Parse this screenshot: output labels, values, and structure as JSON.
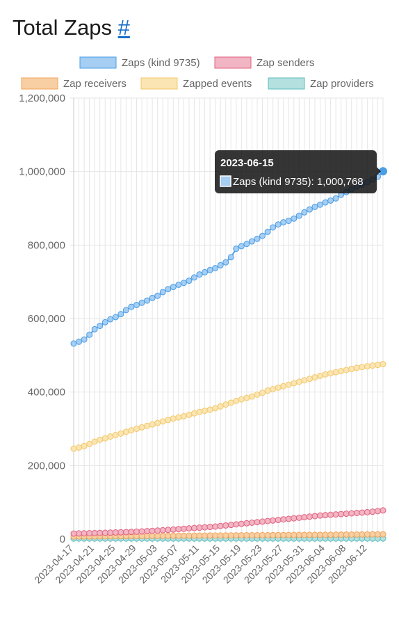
{
  "page": {
    "title": "Total Zaps",
    "anchor": "#"
  },
  "chart_data": {
    "type": "line",
    "title": "",
    "xlabel": "",
    "ylabel": "",
    "ylim": [
      0,
      1200000
    ],
    "y_ticks": [
      "0",
      "200,000",
      "400,000",
      "600,000",
      "800,000",
      "1,000,000",
      "1,200,000"
    ],
    "x_tick_labels": [
      "2023-04-17",
      "2023-04-21",
      "2023-04-25",
      "2023-04-29",
      "2023-05-03",
      "2023-05-07",
      "2023-05-11",
      "2023-05-15",
      "2023-05-19",
      "2023-05-23",
      "2023-05-27",
      "2023-05-31",
      "2023-06-04",
      "2023-06-08",
      "2023-06-12"
    ],
    "x_start": "2023-04-17",
    "x_end": "2023-06-15",
    "grid": true,
    "legend_position": "top",
    "series": [
      {
        "name": "Zaps (kind 9735)",
        "color": "#4a9ee6",
        "fill": "#a6cdf2",
        "values": [
          532000,
          537000,
          543000,
          556000,
          571000,
          580000,
          590000,
          598000,
          604000,
          612000,
          623000,
          632000,
          637000,
          643000,
          649000,
          656000,
          662000,
          672000,
          680000,
          686000,
          692000,
          697000,
          703000,
          712000,
          720000,
          726000,
          732000,
          737000,
          745000,
          753000,
          767000,
          790000,
          797000,
          803000,
          810000,
          817000,
          825000,
          836000,
          848000,
          856000,
          862000,
          866000,
          872000,
          880000,
          889000,
          897000,
          904000,
          910000,
          916000,
          921000,
          927000,
          937000,
          944000,
          952000,
          959000,
          965000,
          971000,
          978000,
          986000,
          1000768
        ]
      },
      {
        "name": "Zap senders",
        "color": "#e0607e",
        "fill": "#f2b5c3",
        "values": [
          15000,
          15300,
          15600,
          15900,
          16200,
          16600,
          17000,
          17400,
          17900,
          18400,
          18900,
          19500,
          20100,
          20800,
          21500,
          22300,
          23100,
          24000,
          25000,
          26000,
          27000,
          28000,
          29000,
          30000,
          31000,
          32000,
          33000,
          34000,
          35500,
          37000,
          38500,
          40000,
          41500,
          43000,
          44500,
          46000,
          47500,
          49000,
          50500,
          52000,
          53500,
          55000,
          56500,
          58000,
          59500,
          61000,
          62500,
          64000,
          65000,
          66000,
          67000,
          68000,
          69000,
          70000,
          71000,
          72000,
          73000,
          74500,
          76000,
          78000
        ]
      },
      {
        "name": "Zap receivers",
        "color": "#f0a35a",
        "fill": "#f7cfa3",
        "values": [
          7000,
          7100,
          7200,
          7300,
          7400,
          7500,
          7600,
          7700,
          7800,
          7900,
          8000,
          8100,
          8200,
          8300,
          8400,
          8500,
          8600,
          8700,
          8800,
          8900,
          9000,
          9100,
          9200,
          9300,
          9400,
          9500,
          9600,
          9700,
          9800,
          9900,
          10000,
          10100,
          10200,
          10300,
          10400,
          10500,
          10600,
          10700,
          10800,
          10900,
          11000,
          11100,
          11200,
          11300,
          11400,
          11500,
          11600,
          11700,
          11800,
          11900,
          12000,
          12100,
          12200,
          12300,
          12400,
          12500,
          12600,
          12700,
          12800,
          12900
        ]
      },
      {
        "name": "Zapped events",
        "color": "#f2c86a",
        "fill": "#fae5b3",
        "values": [
          246000,
          249000,
          253000,
          259000,
          265000,
          270000,
          274000,
          279000,
          283000,
          287000,
          292000,
          296000,
          300000,
          304000,
          308000,
          312000,
          316000,
          320000,
          324000,
          328000,
          331000,
          334000,
          338000,
          342000,
          346000,
          349000,
          352000,
          356000,
          361000,
          366000,
          371000,
          376000,
          380000,
          384000,
          388000,
          393000,
          398000,
          404000,
          408000,
          412000,
          416000,
          420000,
          424000,
          428000,
          432000,
          436000,
          440000,
          444000,
          448000,
          451000,
          454000,
          457000,
          460000,
          463000,
          466000,
          468000,
          470000,
          472000,
          474000,
          476000
        ]
      },
      {
        "name": "Zap providers",
        "color": "#5cbcbc",
        "fill": "#b5e0e0",
        "values": [
          1500,
          1500,
          1500,
          1500,
          1500,
          1500,
          1500,
          1500,
          1500,
          1500,
          1500,
          1500,
          1500,
          1500,
          1500,
          1500,
          1500,
          1500,
          1500,
          1500,
          1500,
          1500,
          1500,
          1500,
          1500,
          1500,
          1500,
          1500,
          1500,
          1500,
          1500,
          1500,
          1500,
          1500,
          1500,
          1500,
          1500,
          1500,
          1500,
          1500,
          1500,
          1500,
          1500,
          1500,
          1500,
          1500,
          1500,
          1500,
          1500,
          1500,
          1500,
          1500,
          1500,
          1500,
          1500,
          1500,
          1500,
          1500,
          1500,
          1500
        ]
      }
    ],
    "tooltip": {
      "title": "2023-06-15",
      "label": "Zaps (kind 9735): 1,000,768",
      "series_index": 0
    }
  }
}
